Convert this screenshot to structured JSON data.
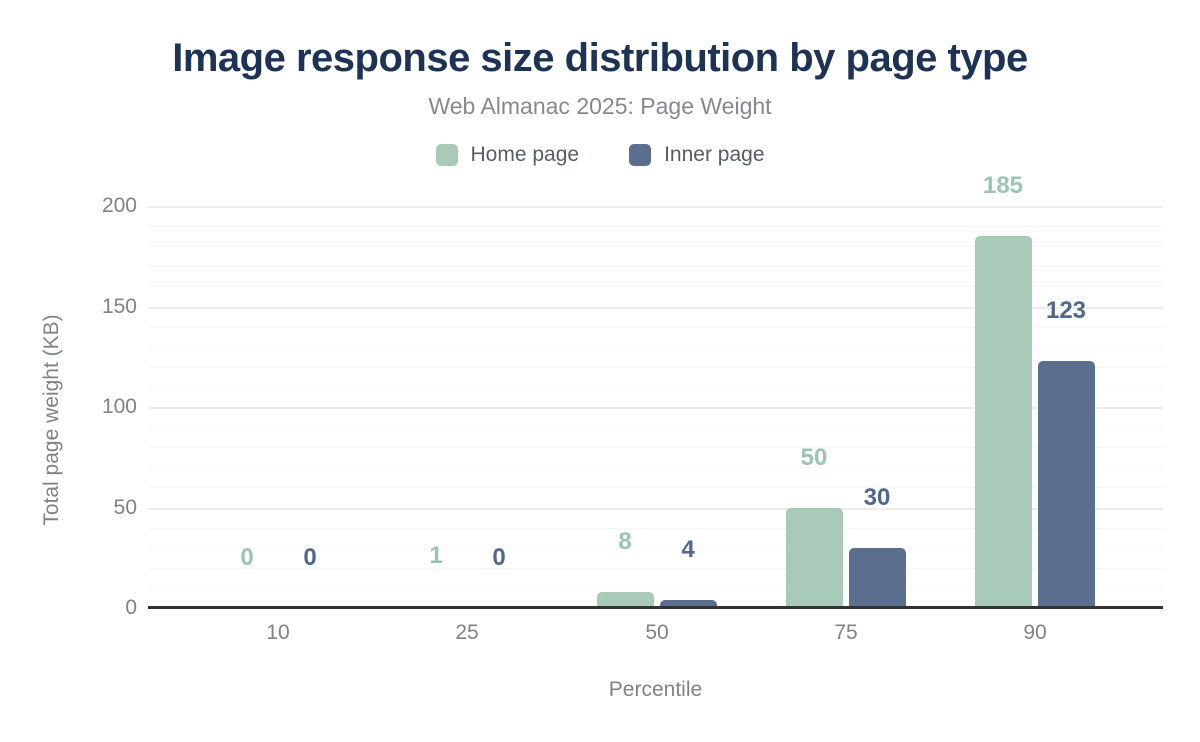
{
  "chart_data": {
    "type": "bar",
    "title": "Image response size distribution by page type",
    "subtitle": "Web Almanac 2025: Page Weight",
    "xlabel": "Percentile",
    "ylabel": "Total page weight (KB)",
    "categories": [
      "10",
      "25",
      "50",
      "75",
      "90"
    ],
    "series": [
      {
        "name": "Home page",
        "color": "#a9cab8",
        "label_color": "#9cc5b0",
        "values": [
          0,
          1,
          8,
          50,
          185
        ]
      },
      {
        "name": "Inner page",
        "color": "#5b6e8d",
        "label_color": "#50678b",
        "values": [
          0,
          0,
          4,
          30,
          123
        ]
      }
    ],
    "y_ticks": [
      0,
      50,
      100,
      150,
      200
    ],
    "ylim": [
      0,
      200
    ],
    "grid": "horizontal, minor every 10 and major every 50",
    "legend_position": "top-center"
  },
  "theme": {
    "background": "#ffffff",
    "title_color": "#1e3354",
    "subtitle_color": "#85898d",
    "legend_text_color": "#565e63",
    "axis_text_color": "#7f8386",
    "axis_line_color": "#333333",
    "grid_major_color": "#ededed",
    "grid_minor_color": "#f6f6f6"
  }
}
